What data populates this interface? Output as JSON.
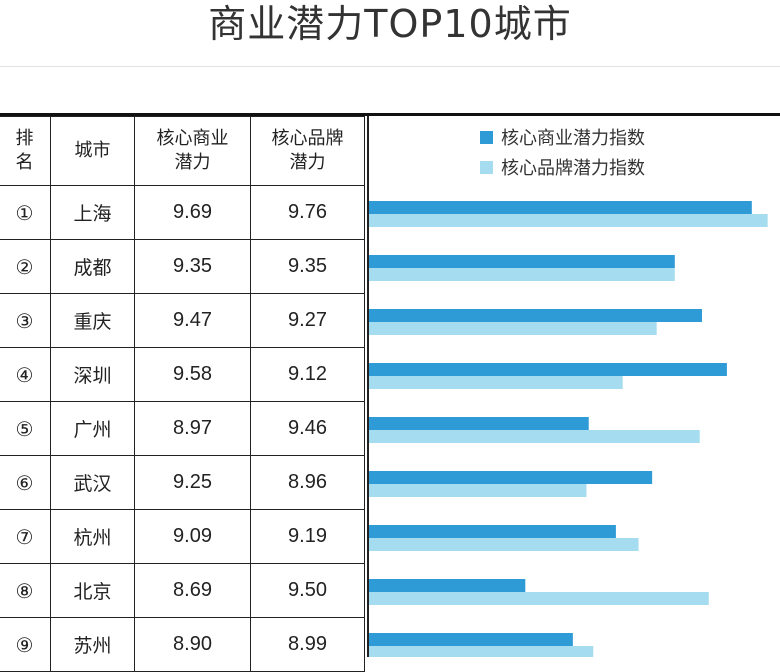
{
  "title": "商业潜力TOP10城市",
  "table": {
    "headers": {
      "rank": [
        "排",
        "名"
      ],
      "city": "城市",
      "biz": [
        "核心商业",
        "潜力"
      ],
      "brand": [
        "核心品牌",
        "潜力"
      ]
    },
    "rows": [
      {
        "rank": "①",
        "city": "上海",
        "biz": "9.69",
        "brand": "9.76"
      },
      {
        "rank": "②",
        "city": "成都",
        "biz": "9.35",
        "brand": "9.35"
      },
      {
        "rank": "③",
        "city": "重庆",
        "biz": "9.47",
        "brand": "9.27"
      },
      {
        "rank": "④",
        "city": "深圳",
        "biz": "9.58",
        "brand": "9.12"
      },
      {
        "rank": "⑤",
        "city": "广州",
        "biz": "8.97",
        "brand": "9.46"
      },
      {
        "rank": "⑥",
        "city": "武汉",
        "biz": "9.25",
        "brand": "8.96"
      },
      {
        "rank": "⑦",
        "city": "杭州",
        "biz": "9.09",
        "brand": "9.19"
      },
      {
        "rank": "⑧",
        "city": "北京",
        "biz": "8.69",
        "brand": "9.50"
      },
      {
        "rank": "⑨",
        "city": "苏州",
        "biz": "8.90",
        "brand": "8.99"
      }
    ]
  },
  "chart_data": {
    "type": "bar",
    "orientation": "horizontal",
    "categories": [
      "上海",
      "成都",
      "重庆",
      "深圳",
      "广州",
      "武汉",
      "杭州",
      "北京",
      "苏州"
    ],
    "series": [
      {
        "name": "核心商业潜力指数",
        "values": [
          9.69,
          9.35,
          9.47,
          9.58,
          8.97,
          9.25,
          9.09,
          8.69,
          8.9
        ],
        "color": "#2e9bd6"
      },
      {
        "name": "核心品牌潜力指数",
        "values": [
          9.76,
          9.35,
          9.27,
          9.12,
          9.46,
          8.96,
          9.19,
          9.5,
          8.99
        ],
        "color": "#a6dcef"
      }
    ],
    "xlim": [
      8.0,
      9.81
    ],
    "legend": "top-right",
    "grid": false
  }
}
